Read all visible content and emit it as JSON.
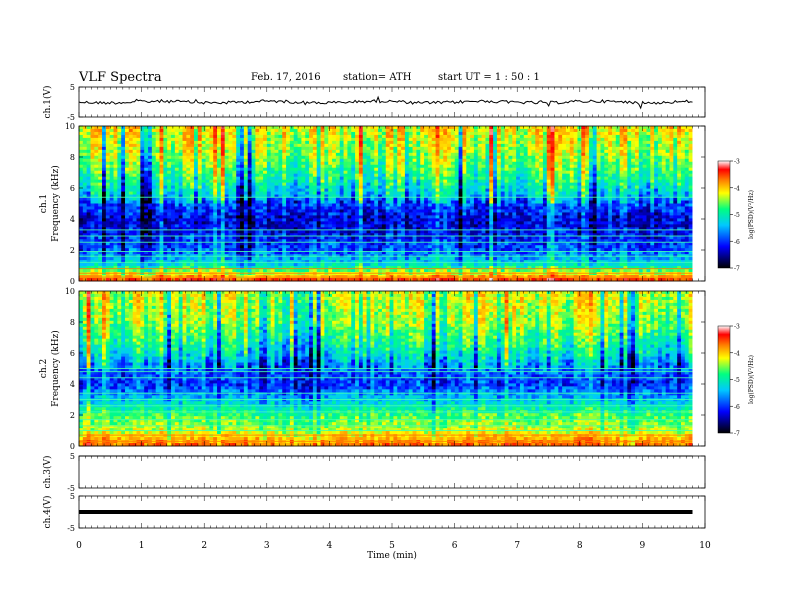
{
  "header": {
    "title": "VLF  Spectra",
    "date": "Feb. 17, 2016",
    "station": "station= ATH",
    "start": "start  UT  =   1  : 50 : 1"
  },
  "chart_data": {
    "type": "heatmap",
    "x": {
      "label": "Time  (min)",
      "range": [
        0,
        10
      ],
      "ticks": [
        "0",
        "1",
        "2",
        "3",
        "4",
        "5",
        "6",
        "7",
        "8",
        "9",
        "10"
      ],
      "data_end": 9.8
    },
    "panels": [
      {
        "name": "ch.1",
        "kind": "waveform",
        "ylabel": "ch.1(V)",
        "ylim": [
          -5,
          5
        ],
        "yticks": [
          "5",
          "-5"
        ],
        "baseline": 0.0,
        "noise": "small fluctuation around 0 V with occasional spikes"
      },
      {
        "name": "ch.1",
        "kind": "spectrogram",
        "ylabel_top": "ch.1",
        "ylabel": "Frequency  (kHz)",
        "ylim": [
          0,
          10
        ],
        "yticks": [
          "0",
          "2",
          "4",
          "6",
          "8",
          "10"
        ],
        "colorbar": {
          "label": "log(PSD)(V²/Hz)",
          "range": [
            -7,
            -3
          ],
          "ticks": [
            "-3",
            "-4",
            "-5",
            "-6",
            "-7"
          ]
        },
        "profile_kHz_vs_logPSD": [
          [
            0.0,
            -3.6
          ],
          [
            0.4,
            -4.6
          ],
          [
            1.0,
            -5.6
          ],
          [
            2.0,
            -6.2
          ],
          [
            3.0,
            -6.4
          ],
          [
            4.0,
            -6.5
          ],
          [
            5.0,
            -6.2
          ],
          [
            5.5,
            -5.8
          ],
          [
            6.5,
            -5.4
          ],
          [
            8.0,
            -5.0
          ],
          [
            9.0,
            -4.8
          ],
          [
            10.0,
            -4.6
          ]
        ],
        "lines_kHz": [
          0.25,
          0.5,
          0.8,
          1.2,
          1.6,
          1.9,
          2.5,
          2.9,
          3.3,
          5.4
        ]
      },
      {
        "name": "ch.2",
        "kind": "spectrogram",
        "ylabel_top": "ch.2",
        "ylabel": "Frequency  (kHz)",
        "ylim": [
          0,
          10
        ],
        "yticks": [
          "0",
          "2",
          "4",
          "6",
          "8",
          "10"
        ],
        "colorbar": {
          "label": "log(PSD)(V²/Hz)",
          "range": [
            -7,
            -3
          ],
          "ticks": [
            "-3",
            "-4",
            "-5",
            "-6",
            "-7"
          ]
        },
        "profile_kHz_vs_logPSD": [
          [
            0.0,
            -4.0
          ],
          [
            0.5,
            -4.4
          ],
          [
            1.0,
            -4.8
          ],
          [
            2.0,
            -5.2
          ],
          [
            3.0,
            -5.8
          ],
          [
            4.0,
            -6.3
          ],
          [
            5.0,
            -6.1
          ],
          [
            6.0,
            -5.6
          ],
          [
            7.0,
            -5.3
          ],
          [
            8.0,
            -5.0
          ],
          [
            9.0,
            -4.9
          ],
          [
            10.0,
            -4.8
          ]
        ],
        "lines_kHz": [
          0.3,
          0.7,
          1.0,
          1.3,
          1.7,
          2.2,
          2.6,
          3.0,
          3.4,
          4.4,
          4.8,
          5.0
        ]
      },
      {
        "name": "ch.3",
        "kind": "waveform",
        "ylabel": "ch.3(V)",
        "ylim": [
          -5,
          5
        ],
        "yticks": [
          "5",
          "-5"
        ],
        "baseline": 5.0,
        "noise": "flat"
      },
      {
        "name": "ch.4",
        "kind": "waveform",
        "ylabel": "ch.4(V)",
        "ylim": [
          -5,
          5
        ],
        "yticks": [
          "5",
          "-5"
        ],
        "baseline": 0.0,
        "noise": "thick flat trace"
      }
    ],
    "colors": {
      "colormap": [
        "#000000",
        "#0000ff",
        "#00c8ff",
        "#00ff80",
        "#ffff00",
        "#ff8000",
        "#ff0000",
        "#ffffff"
      ],
      "axis": "#000000",
      "trace": "#000000"
    },
    "grid": false,
    "legend": "colorbar right of each spectrogram"
  }
}
